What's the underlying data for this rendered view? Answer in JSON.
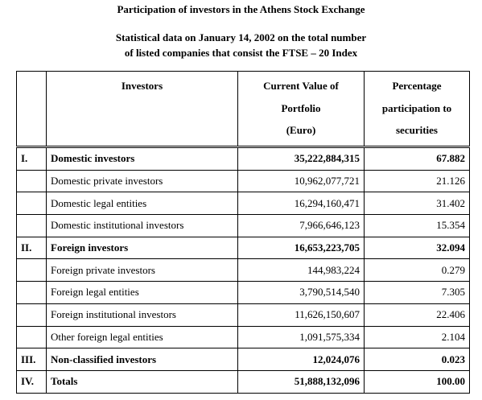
{
  "title": "Participation of investors in the Athens Stock Exchange",
  "subtitle": [
    "Statistical data on January 14, 2002 on the total number",
    "of listed companies that consist the FTSE – 20 Index"
  ],
  "table": {
    "header": [
      [
        "Investors"
      ],
      [
        "Current Value of",
        "Portfolio",
        "(Euro)"
      ],
      [
        "Percentage",
        "participation to",
        "securities"
      ]
    ],
    "rows": [
      {
        "number": "I.",
        "investor": "Domestic investors",
        "value": "35,222,884,315",
        "percentage": "67.882",
        "bold": true
      },
      {
        "investor": "Domestic private investors",
        "value": "10,962,077,721",
        "percentage": "21.126",
        "bold": false
      },
      {
        "investor": "Domestic legal entities",
        "value": "16,294,160,471",
        "percentage": "31.402",
        "bold": false
      },
      {
        "investor": "Domestic institutional investors",
        "value": "7,966,646,123",
        "percentage": "15.354",
        "bold": false
      },
      {
        "number": "II.",
        "investor": "Foreign investors",
        "value": "16,653,223,705",
        "percentage": "32.094",
        "bold": true
      },
      {
        "investor": "Foreign private investors",
        "value": "144,983,224",
        "percentage": "0.279",
        "bold": false
      },
      {
        "investor": "Foreign legal entities",
        "value": "3,790,514,540",
        "percentage": "7.305",
        "bold": false
      },
      {
        "investor": "Foreign institutional investors",
        "value": "11,626,150,607",
        "percentage": "22.406",
        "bold": false
      },
      {
        "investor": "Other foreign legal entities",
        "value": "1,091,575,334",
        "percentage": "2.104",
        "bold": false
      },
      {
        "number": "III.",
        "investor": "Non-classified investors",
        "value": "12,024,076",
        "percentage": "0.023",
        "bold": true
      },
      {
        "number": "IV.",
        "investor": "Totals",
        "value": "51,888,132,096",
        "percentage": "100.00",
        "bold": true
      }
    ]
  }
}
